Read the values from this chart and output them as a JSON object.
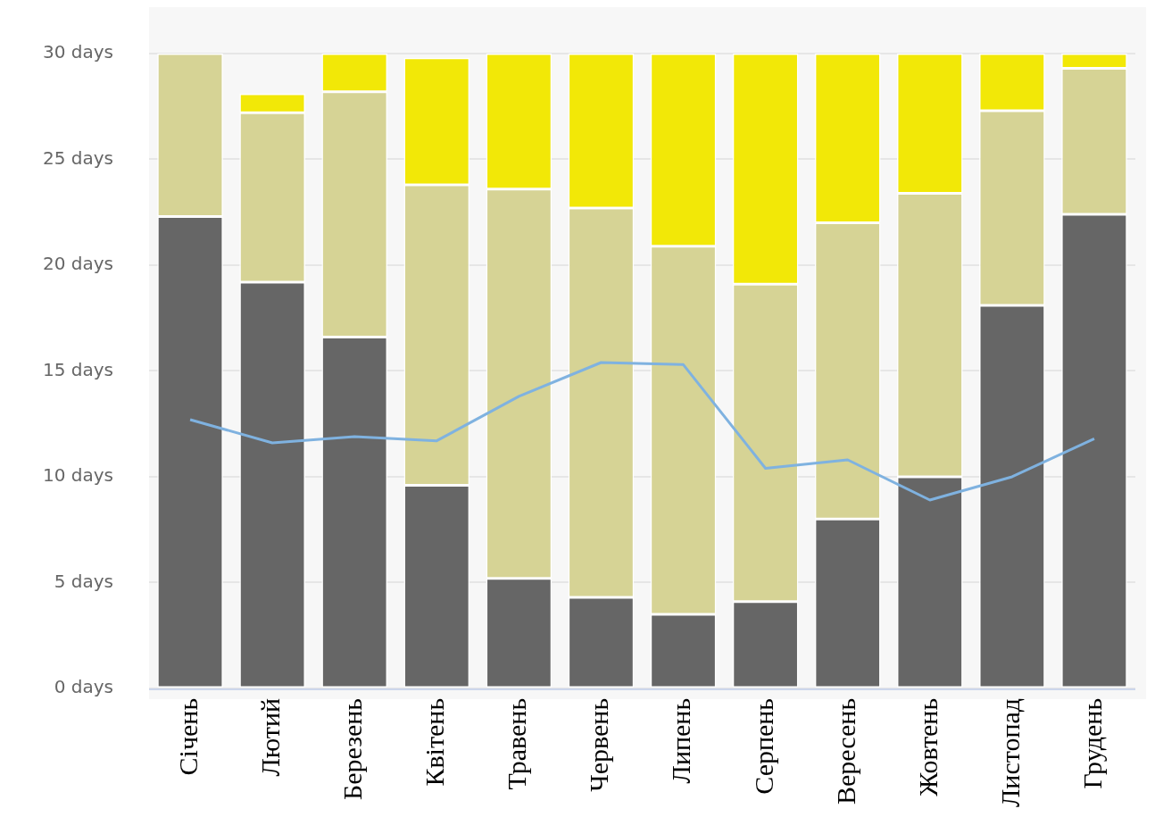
{
  "chart_data": {
    "type": "bar",
    "stacked": true,
    "categories": [
      "Січень",
      "Лютий",
      "Березень",
      "Квітень",
      "Травень",
      "Червень",
      "Липень",
      "Серпень",
      "Вересень",
      "Жовтень",
      "Листопад",
      "Грудень"
    ],
    "series": [
      {
        "color": "#666666",
        "values": [
          22.3,
          19.2,
          16.6,
          9.6,
          5.2,
          4.3,
          3.5,
          4.1,
          8.0,
          10.0,
          18.1,
          22.4
        ]
      },
      {
        "color": "#d6d395",
        "values": [
          7.7,
          8.0,
          11.6,
          14.2,
          18.4,
          18.4,
          17.4,
          15.0,
          14.0,
          13.4,
          9.2,
          6.9
        ]
      },
      {
        "color": "#f2e807",
        "values": [
          0,
          0.9,
          1.8,
          6.0,
          6.4,
          7.3,
          9.1,
          10.9,
          8.0,
          6.6,
          2.7,
          0.7
        ]
      },
      {
        "type": "line",
        "color": "#7fb2e0",
        "values": [
          12.7,
          11.6,
          11.9,
          11.7,
          13.8,
          15.4,
          15.3,
          10.4,
          10.8,
          8.9,
          10.0,
          11.8
        ]
      }
    ],
    "ylim": [
      0,
      30
    ],
    "yticks": [
      {
        "value": 0,
        "label": "0 days"
      },
      {
        "value": 5,
        "label": "5 days"
      },
      {
        "value": 10,
        "label": "10 days"
      },
      {
        "value": 15,
        "label": "15 days"
      },
      {
        "value": 20,
        "label": "20 days"
      },
      {
        "value": 25,
        "label": "25 days"
      },
      {
        "value": 30,
        "label": "30 days"
      }
    ],
    "grid": "y",
    "legend": false,
    "marker": "none"
  }
}
